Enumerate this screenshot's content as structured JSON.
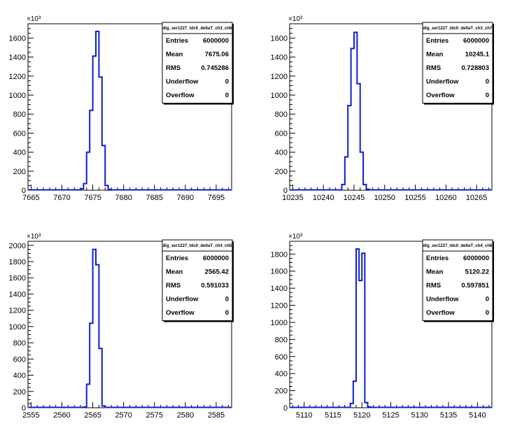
{
  "chart_data": [
    {
      "type": "histogram",
      "stats_title": "dig_ser1227_tdc0_deltaT_ch3_ch6",
      "stats": [
        {
          "label": "Entries",
          "value": "6000000"
        },
        {
          "label": "Mean",
          "value": "7675.06"
        },
        {
          "label": "RMS",
          "value": "0.745286"
        },
        {
          "label": "Underflow",
          "value": "0"
        },
        {
          "label": "Overflow",
          "value": "0"
        }
      ],
      "y_exponent": "×10³",
      "xlim": [
        7664.5,
        7697.5
      ],
      "ylim": [
        0,
        1750
      ],
      "x_ticks": [
        7665,
        7670,
        7675,
        7680,
        7685,
        7690,
        7695
      ],
      "y_ticks": [
        0,
        200,
        400,
        600,
        800,
        1000,
        1200,
        1400,
        1600
      ],
      "bin_width": 0.5,
      "bins": [
        {
          "x": 7673.0,
          "y": 15
        },
        {
          "x": 7673.5,
          "y": 70
        },
        {
          "x": 7674.0,
          "y": 400
        },
        {
          "x": 7674.5,
          "y": 840
        },
        {
          "x": 7675.0,
          "y": 1410
        },
        {
          "x": 7675.5,
          "y": 1670
        },
        {
          "x": 7676.0,
          "y": 1190
        },
        {
          "x": 7676.5,
          "y": 470
        },
        {
          "x": 7677.0,
          "y": 50
        },
        {
          "x": 7677.5,
          "y": 8
        }
      ]
    },
    {
      "type": "histogram",
      "stats_title": "dig_ser1227_tdc0_deltaT_ch3_ch7",
      "stats": [
        {
          "label": "Entries",
          "value": "6000000"
        },
        {
          "label": "Mean",
          "value": "10245.1"
        },
        {
          "label": "RMS",
          "value": "0.728803"
        },
        {
          "label": "Underflow",
          "value": "0"
        },
        {
          "label": "Overflow",
          "value": "0"
        }
      ],
      "y_exponent": "×10³",
      "xlim": [
        10234.5,
        10267.5
      ],
      "ylim": [
        0,
        1750
      ],
      "x_ticks": [
        10235,
        10240,
        10245,
        10250,
        10255,
        10260,
        10265
      ],
      "y_ticks": [
        0,
        200,
        400,
        600,
        800,
        1000,
        1200,
        1400,
        1600
      ],
      "bin_width": 0.5,
      "bins": [
        {
          "x": 10243.0,
          "y": 60
        },
        {
          "x": 10243.5,
          "y": 350
        },
        {
          "x": 10244.0,
          "y": 890
        },
        {
          "x": 10244.5,
          "y": 1490
        },
        {
          "x": 10245.0,
          "y": 1660
        },
        {
          "x": 10245.5,
          "y": 1120
        },
        {
          "x": 10246.0,
          "y": 400
        },
        {
          "x": 10246.5,
          "y": 60
        },
        {
          "x": 10247.0,
          "y": 10
        }
      ]
    },
    {
      "type": "histogram",
      "stats_title": "dig_ser1227_tdc0_deltaT_ch4_ch5",
      "stats": [
        {
          "label": "Entries",
          "value": "6000000"
        },
        {
          "label": "Mean",
          "value": "2565.42"
        },
        {
          "label": "RMS",
          "value": "0.591033"
        },
        {
          "label": "Underflow",
          "value": "0"
        },
        {
          "label": "Overflow",
          "value": "0"
        }
      ],
      "y_exponent": "×10³",
      "xlim": [
        2554.5,
        2587.5
      ],
      "ylim": [
        0,
        2050
      ],
      "x_ticks": [
        2555,
        2560,
        2565,
        2570,
        2575,
        2580,
        2585
      ],
      "y_ticks": [
        0,
        200,
        400,
        600,
        800,
        1000,
        1200,
        1400,
        1600,
        1800,
        2000
      ],
      "bin_width": 0.5,
      "bins": [
        {
          "x": 2563.5,
          "y": 10
        },
        {
          "x": 2564.0,
          "y": 290
        },
        {
          "x": 2564.5,
          "y": 1040
        },
        {
          "x": 2565.0,
          "y": 1950
        },
        {
          "x": 2565.5,
          "y": 1760
        },
        {
          "x": 2566.0,
          "y": 730
        },
        {
          "x": 2566.5,
          "y": 20
        }
      ]
    },
    {
      "type": "histogram",
      "stats_title": "dig_ser1227_tdc0_deltaT_ch4_ch6",
      "stats": [
        {
          "label": "Entries",
          "value": "6000000"
        },
        {
          "label": "Mean",
          "value": "5120.22"
        },
        {
          "label": "RMS",
          "value": "0.597851"
        },
        {
          "label": "Underflow",
          "value": "0"
        },
        {
          "label": "Overflow",
          "value": "0"
        }
      ],
      "y_exponent": "×10³",
      "xlim": [
        5107.5,
        5142.5
      ],
      "ylim": [
        0,
        1950
      ],
      "x_ticks": [
        5110,
        5115,
        5120,
        5125,
        5130,
        5135,
        5140
      ],
      "y_ticks": [
        0,
        200,
        400,
        600,
        800,
        1000,
        1200,
        1400,
        1600,
        1800
      ],
      "bin_width": 0.5,
      "bins": [
        {
          "x": 5118.0,
          "y": 50
        },
        {
          "x": 5118.5,
          "y": 310
        },
        {
          "x": 5119.0,
          "y": 1860
        },
        {
          "x": 5119.5,
          "y": 1490
        },
        {
          "x": 5120.0,
          "y": 1810
        },
        {
          "x": 5120.5,
          "y": 60
        },
        {
          "x": 5121.0,
          "y": 10
        }
      ]
    }
  ]
}
